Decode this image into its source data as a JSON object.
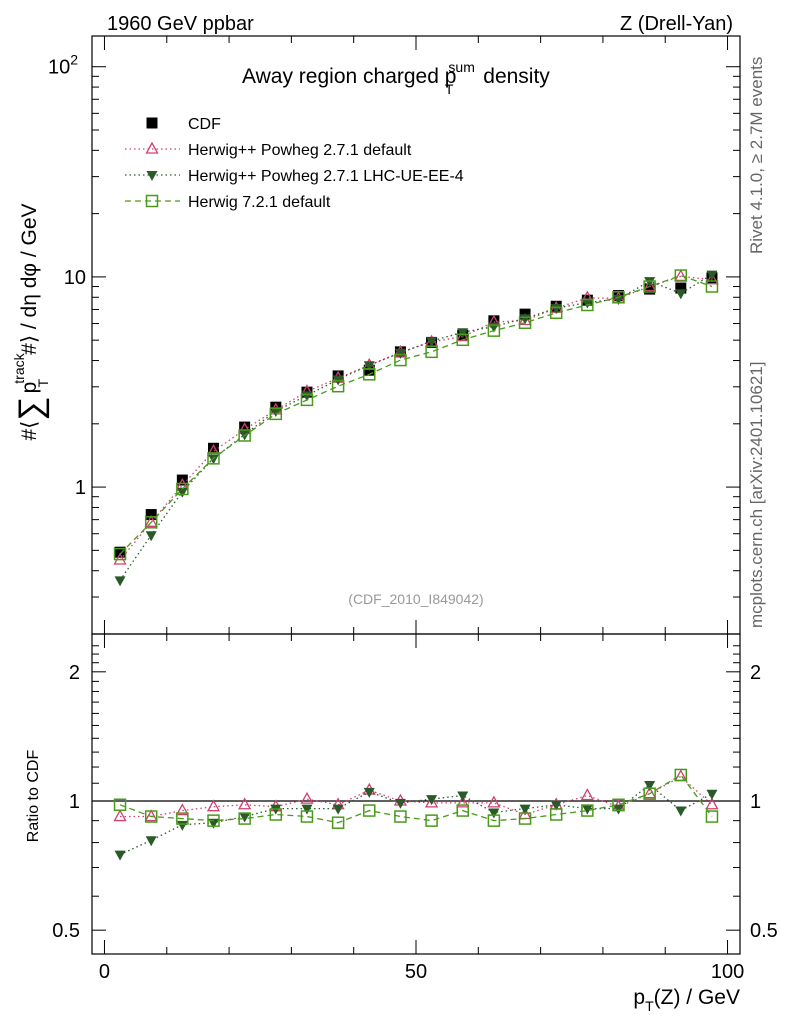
{
  "header": {
    "left": "1960 GeV ppbar",
    "right": "Z (Drell-Yan)"
  },
  "side_notes": {
    "rivet": "Rivet 4.1.0, ≥ 2.7M events",
    "mcplots": "mcplots.cern.ch [arXiv:2401.10621]"
  },
  "chart_data": [
    {
      "type": "scatter",
      "title_main": "Away region charged p",
      "title_sup": "sum",
      "title_sub": "T",
      "title_end": " density",
      "ylabel": "#⟨ ∑ p_T^track #⟩ / dη dφ / GeV",
      "ylabel_pre": "#⟨",
      "ylabel_sum": "∑",
      "ylabel_p": "p",
      "ylabel_sup": "track",
      "ylabel_sub": "T",
      "ylabel_post": "#⟩ / dη dφ / GeV",
      "yscale": "log",
      "ylim": [
        0.2,
        140
      ],
      "xlim": [
        -2,
        102
      ],
      "y_ticklabels": [
        {
          "v": 1,
          "label": "1"
        },
        {
          "v": 10,
          "label": "10"
        },
        {
          "v": 100,
          "label": "10",
          "sup": "2"
        }
      ],
      "annotation": "(CDF_2010_I849042)",
      "x": [
        2.5,
        7.5,
        12.5,
        17.5,
        22.5,
        27.5,
        32.5,
        37.5,
        42.5,
        47.5,
        52.5,
        57.5,
        62.5,
        67.5,
        72.5,
        77.5,
        82.5,
        87.5,
        92.5,
        97.5
      ],
      "series": [
        {
          "name": "CDF",
          "color": "#000000",
          "marker": "square-filled",
          "linestyle": "none",
          "values": [
            0.49,
            0.74,
            1.08,
            1.53,
            1.93,
            2.4,
            2.83,
            3.38,
            3.6,
            4.4,
            4.88,
            5.28,
            6.18,
            6.65,
            7.25,
            7.75,
            8.15,
            8.75,
            8.85,
            9.9
          ]
        },
        {
          "name": "Herwig++ Powheg 2.7.1 default",
          "color": "#d04070",
          "marker": "triangle-open",
          "linestyle": "dotted",
          "values": [
            0.45,
            0.68,
            1.02,
            1.48,
            1.88,
            2.33,
            2.85,
            3.3,
            3.8,
            4.38,
            4.9,
            5.2,
            6.1,
            6.2,
            7.1,
            7.95,
            7.9,
            9.0,
            10.05,
            9.7
          ]
        },
        {
          "name": "Herwig++ Powheg 2.7.1 LHC-UE-EE-4",
          "color": "#2a5a2a",
          "marker": "triangle-down-filled",
          "linestyle": "dotted",
          "values": [
            0.36,
            0.59,
            0.95,
            1.37,
            1.78,
            2.3,
            2.73,
            3.25,
            3.8,
            4.35,
            4.95,
            5.45,
            5.8,
            6.35,
            7.1,
            7.55,
            7.85,
            9.55,
            8.35,
            10.25
          ]
        },
        {
          "name": "Herwig 7.2.1 default",
          "color": "#4a9a1a",
          "marker": "square-open",
          "linestyle": "dashed",
          "values": [
            0.48,
            0.68,
            0.98,
            1.37,
            1.76,
            2.23,
            2.6,
            3.02,
            3.44,
            4.02,
            4.4,
            5.02,
            5.55,
            6.05,
            6.75,
            7.35,
            8.0,
            9.0,
            10.15,
            9.0
          ]
        }
      ]
    },
    {
      "type": "scatter",
      "ylabel": "Ratio to CDF",
      "yscale": "log",
      "ylim": [
        0.44,
        2.45
      ],
      "xlim": [
        -2,
        102
      ],
      "xlabel": "p_T(Z) / GeV",
      "xlabel_p": "p",
      "xlabel_sub": "T",
      "xlabel_rest": "(Z) / GeV",
      "x_ticklabels": [
        {
          "v": 0,
          "label": "0"
        },
        {
          "v": 50,
          "label": "50"
        },
        {
          "v": 100,
          "label": "100"
        }
      ],
      "y_ticklabels": [
        {
          "v": 0.5,
          "label": "0.5"
        },
        {
          "v": 1,
          "label": "1"
        },
        {
          "v": 2,
          "label": "2"
        }
      ],
      "reference_line": 1,
      "x": [
        2.5,
        7.5,
        12.5,
        17.5,
        22.5,
        27.5,
        32.5,
        37.5,
        42.5,
        47.5,
        52.5,
        57.5,
        62.5,
        67.5,
        72.5,
        77.5,
        82.5,
        87.5,
        92.5,
        97.5
      ],
      "series": [
        {
          "name": "Herwig++ Powheg 2.7.1 default",
          "color": "#d04070",
          "marker": "triangle-open",
          "linestyle": "dotted",
          "values": [
            0.92,
            0.92,
            0.95,
            0.97,
            0.98,
            0.97,
            1.01,
            0.98,
            1.06,
            1.0,
            0.99,
            0.99,
            0.99,
            0.93,
            0.98,
            1.03,
            0.97,
            1.04,
            1.14,
            0.98
          ]
        },
        {
          "name": "Herwig++ Powheg 2.7.1 LHC-UE-EE-4",
          "color": "#2a5a2a",
          "marker": "triangle-down-filled",
          "linestyle": "dotted",
          "values": [
            0.75,
            0.81,
            0.88,
            0.89,
            0.92,
            0.96,
            0.96,
            0.96,
            1.05,
            0.99,
            1.01,
            1.03,
            0.94,
            0.96,
            0.98,
            0.96,
            0.96,
            1.09,
            0.95,
            1.04
          ]
        },
        {
          "name": "Herwig 7.2.1 default",
          "color": "#4a9a1a",
          "marker": "square-open",
          "linestyle": "dashed",
          "values": [
            0.98,
            0.92,
            0.91,
            0.9,
            0.91,
            0.93,
            0.92,
            0.89,
            0.95,
            0.92,
            0.9,
            0.95,
            0.9,
            0.91,
            0.93,
            0.95,
            0.98,
            1.04,
            1.15,
            0.92
          ]
        }
      ]
    }
  ]
}
